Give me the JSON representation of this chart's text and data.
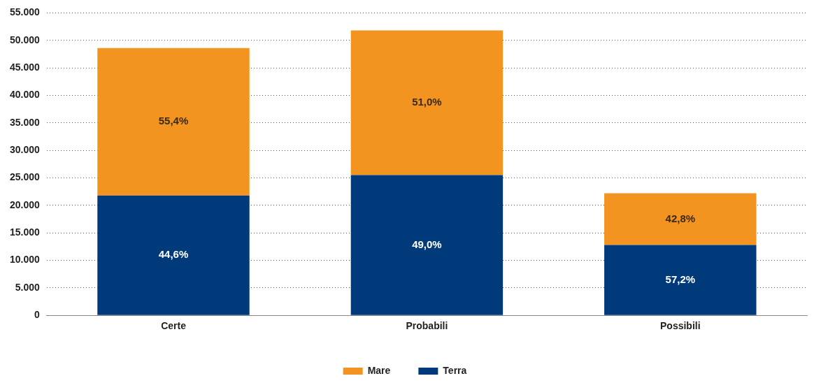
{
  "chart_data": {
    "type": "bar",
    "stacked": true,
    "categories": [
      "Certe",
      "Probabili",
      "Possibili"
    ],
    "series": [
      {
        "name": "Terra",
        "color": "#003a7a",
        "values": [
          21800,
          25500,
          12800
        ]
      },
      {
        "name": "Mare",
        "color": "#f39420",
        "values": [
          26800,
          26300,
          9400
        ]
      }
    ],
    "annotations": [
      "44,6%",
      "49,0%",
      "57,2%",
      "55,4%",
      "51,0%",
      "42,8%"
    ],
    "ylim": [
      0,
      55000
    ],
    "yticks": [
      0,
      {
        "value": 5000,
        "label": "5.000"
      },
      {
        "value": 10000,
        "label": "10.000"
      },
      {
        "value": 15000,
        "label": "15.000"
      },
      {
        "value": 20000,
        "label": "20.000"
      },
      {
        "value": 25000,
        "label": "25.000"
      },
      {
        "value": 30000,
        "label": "30.000"
      },
      {
        "value": 35000,
        "label": "35.000"
      },
      {
        "value": 40000,
        "label": "40.000"
      },
      {
        "value": 45000,
        "label": "45.000"
      },
      {
        "value": 50000,
        "label": "50.000"
      },
      {
        "value": 55000,
        "label": "55.000"
      }
    ],
    "grid": "y",
    "legend": "bottom"
  }
}
